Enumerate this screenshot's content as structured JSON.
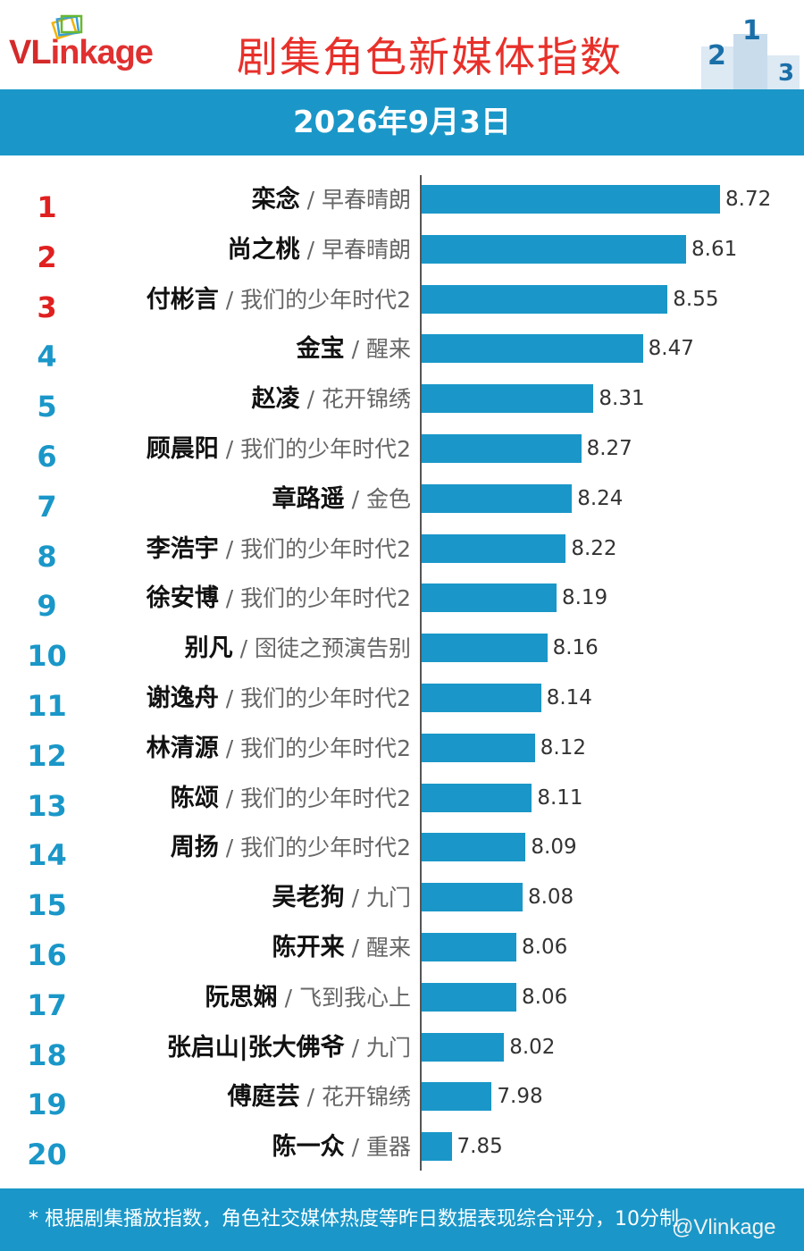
{
  "header": {
    "logo_v": "VL",
    "logo_rest": "inkage",
    "title": "剧集角色新媒体指数",
    "podium_labels": [
      "2",
      "1",
      "3"
    ]
  },
  "date": "2026年9月3日",
  "footer": {
    "note": "* 根据剧集播放指数，角色社交媒体热度等昨日数据表现综合评分，10分制",
    "watermark": "@Vlinkage"
  },
  "colors": {
    "bar": "#1a97c8",
    "rank_top3": "#e02020",
    "rank_other": "#1a97c8",
    "title": "#e8302a"
  },
  "chart_data": {
    "type": "bar",
    "orientation": "horizontal",
    "categories": [
      "栾念",
      "尚之桃",
      "付彬言",
      "金宝",
      "赵凌",
      "顾晨阳",
      "章路遥",
      "李浩宇",
      "徐安博",
      "别凡",
      "谢逸舟",
      "林清源",
      "陈颂",
      "周扬",
      "吴老狗",
      "陈开来",
      "阮思娴",
      "张启山|张大佛爷",
      "傅庭芸",
      "陈一众"
    ],
    "dramas": [
      "早春晴朗",
      "早春晴朗",
      "我们的少年时代2",
      "醒来",
      "花开锦绣",
      "我们的少年时代2",
      "金色",
      "我们的少年时代2",
      "我们的少年时代2",
      "囹徒之预演告别",
      "我们的少年时代2",
      "我们的少年时代2",
      "我们的少年时代2",
      "我们的少年时代2",
      "九门",
      "醒来",
      "飞到我心上",
      "九门",
      "花开锦绣",
      "重器"
    ],
    "ranks": [
      "1",
      "2",
      "3",
      "4",
      "5",
      "6",
      "7",
      "8",
      "9",
      "10",
      "11",
      "12",
      "13",
      "14",
      "15",
      "16",
      "17",
      "18",
      "19",
      "20"
    ],
    "values": [
      8.72,
      8.61,
      8.55,
      8.47,
      8.31,
      8.27,
      8.24,
      8.22,
      8.19,
      8.16,
      8.14,
      8.12,
      8.11,
      8.09,
      8.08,
      8.06,
      8.06,
      8.02,
      7.98,
      7.85
    ],
    "value_labels": [
      "8.72",
      "8.61",
      "8.55",
      "8.47",
      "8.31",
      "8.27",
      "8.24",
      "8.22",
      "8.19",
      "8.16",
      "8.14",
      "8.12",
      "8.11",
      "8.09",
      "8.08",
      "8.06",
      "8.06",
      "8.02",
      "7.98",
      "7.85"
    ],
    "xlim": [
      7.75,
      8.72
    ],
    "title": "剧集角色新媒体指数",
    "xlabel": "",
    "ylabel": "",
    "grid": false,
    "legend": "none"
  }
}
